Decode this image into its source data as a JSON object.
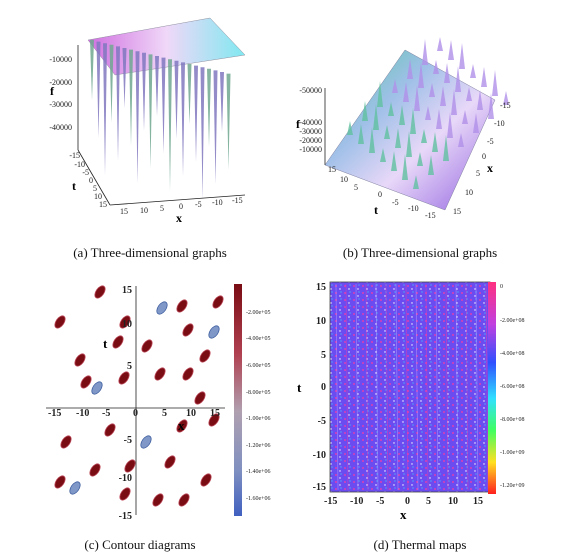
{
  "captions": {
    "a": "(a)  Three-dimensional graphs",
    "b": "(b)  Three-dimensional graphs",
    "c": "(c)  Contour diagrams",
    "d": "(d)  Thermal maps"
  },
  "panel_a": {
    "f_label": "f",
    "t_label": "t",
    "x_label": "x",
    "f_ticks": [
      "-10000",
      "-20000",
      "-30000",
      "-40000"
    ],
    "t_ticks": [
      "-15",
      "-10",
      "-5",
      "0",
      "5",
      "10",
      "15"
    ],
    "x_ticks": [
      "15",
      "10",
      "5",
      "0",
      "-5",
      "-10",
      "-15"
    ]
  },
  "panel_b": {
    "f_label": "f",
    "t_label": "t",
    "x_label": "x",
    "f_ticks": [
      "-50000",
      "-40000",
      "-30000",
      "-20000",
      "-10000"
    ],
    "t_ticks": [
      "15",
      "10",
      "5",
      "0",
      "-5",
      "-10",
      "-15"
    ],
    "x_ticks": [
      "-15",
      "-10",
      "-5",
      "0",
      "5",
      "10",
      "15"
    ]
  },
  "panel_c": {
    "t_label": "t",
    "x_label": "x",
    "x_ticks": [
      "-15",
      "-10",
      "-5",
      "0",
      "5",
      "10",
      "15"
    ],
    "y_ticks": [
      "15",
      "10",
      "5",
      "-5",
      "-10",
      "-15"
    ],
    "colorbar_ticks": [
      "-2.00e+05",
      "-4.00e+05",
      "-6.00e+05",
      "-8.00e+05",
      "-1.00e+06",
      "-1.20e+06",
      "-1.40e+06",
      "-1.60e+06"
    ],
    "colors": {
      "dark": "#7a0c14",
      "mid": "#c05060",
      "blue": "#5a78c0"
    }
  },
  "panel_d": {
    "t_label": "t",
    "x_label": "x",
    "x_ticks": [
      "-15",
      "-10",
      "-5",
      "0",
      "5",
      "10",
      "15"
    ],
    "y_ticks": [
      "15",
      "10",
      "5",
      "0",
      "-5",
      "-10",
      "-15"
    ],
    "colorbar_ticks": [
      "0",
      "-2.00e+08",
      "-4.00e+08",
      "-6.00e+08",
      "-8.00e+08",
      "-1.00e+09",
      "-1.20e+09"
    ],
    "colors": {
      "background": "#6a4cf0",
      "accent": "#ff3aa0"
    }
  }
}
